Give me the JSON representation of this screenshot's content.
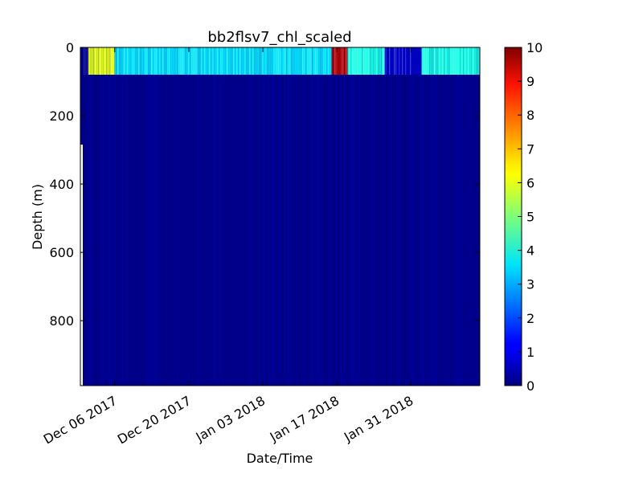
{
  "chart_data": {
    "type": "heatmap",
    "title": "bb2flsv7_chl_scaled",
    "xlabel": "Date/Time",
    "ylabel": "Depth (m)",
    "x_ticks": [
      "Dec 06 2017",
      "Dec 20 2017",
      "Jan 03 2018",
      "Jan 17 2018",
      "Jan 31 2018"
    ],
    "x_tick_days": [
      0,
      14,
      28,
      42,
      56
    ],
    "x_range_days": [
      -6.5,
      69
    ],
    "y_ticks": [
      0,
      200,
      400,
      600,
      800
    ],
    "y_range": [
      0,
      990
    ],
    "y_inverted": true,
    "colorbar": {
      "colormap": "jet",
      "range": [
        0,
        10
      ],
      "ticks": [
        0,
        1,
        2,
        3,
        4,
        5,
        6,
        7,
        8,
        9,
        10
      ]
    },
    "surface_layer": {
      "depth_range_m": [
        0,
        80
      ],
      "segments": [
        {
          "start": "Dec 01 2017",
          "end": "Dec 06 2017",
          "value": 6
        },
        {
          "start": "Dec 06 2017",
          "end": "Jan 16 2018",
          "value": 3.5
        },
        {
          "start": "Jan 16 2018",
          "end": "Jan 19 2018",
          "value": 9.5
        },
        {
          "start": "Jan 19 2018",
          "end": "Jan 26 2018",
          "value": 4
        },
        {
          "start": "Jan 26 2018",
          "end": "Feb 02 2018",
          "value": 0.7
        },
        {
          "start": "Feb 02 2018",
          "end": "Feb 13 2018",
          "value": 4
        }
      ]
    },
    "deep_value": 0.1
  }
}
